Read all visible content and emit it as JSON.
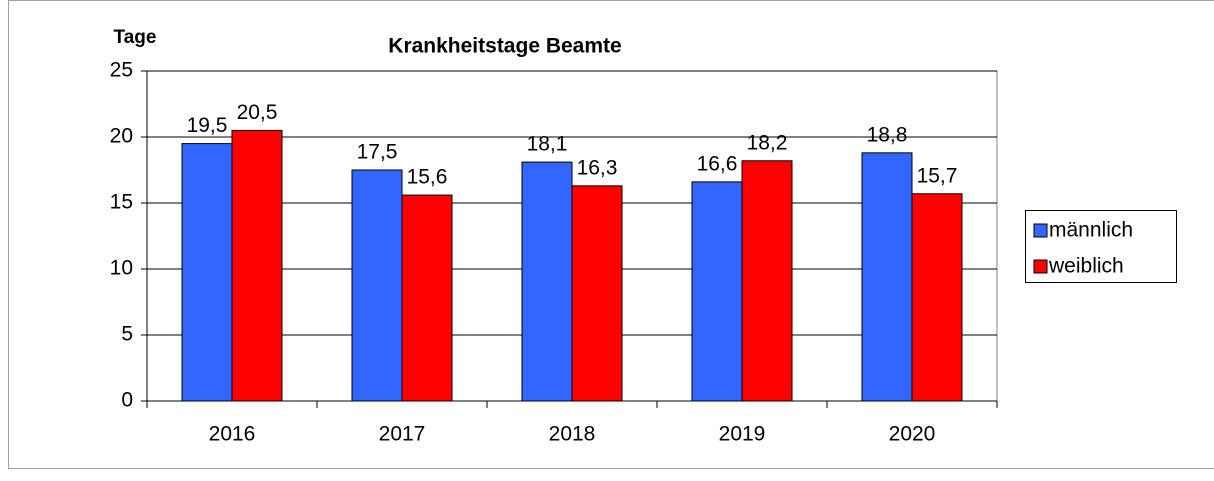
{
  "chart_data": {
    "type": "bar",
    "title": "Krankheitstage Beamte",
    "y_label": "Tage",
    "categories": [
      "2016",
      "2017",
      "2018",
      "2019",
      "2020"
    ],
    "series": [
      {
        "name": "männlich",
        "color": "#3366ff",
        "values": [
          19.5,
          17.5,
          18.1,
          16.6,
          18.8
        ],
        "value_labels": [
          "19,5",
          "17,5",
          "18,1",
          "16,6",
          "18,8"
        ]
      },
      {
        "name": "weiblich",
        "color": "#ff0000",
        "values": [
          20.5,
          15.6,
          16.3,
          18.2,
          15.7
        ],
        "value_labels": [
          "20,5",
          "15,6",
          "16,3",
          "18,2",
          "15,7"
        ]
      }
    ],
    "ylim": [
      0,
      25
    ],
    "yticks": [
      0,
      5,
      10,
      15,
      20,
      25
    ],
    "grid": true,
    "legend": "right"
  }
}
